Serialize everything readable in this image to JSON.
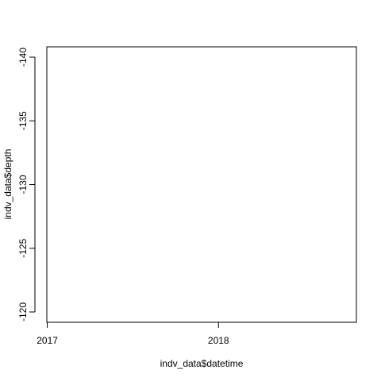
{
  "chart_data": {
    "type": "scatter",
    "title": "",
    "xlabel": "indv_data$datetime",
    "ylabel": "indv_data$depth",
    "x_axis": {
      "type": "date",
      "range": [
        "2016-12-31",
        "2018-10-22"
      ],
      "ticks": [
        {
          "value": "2017-01-01",
          "label": "2017"
        },
        {
          "value": "2018-01-01",
          "label": "2018"
        }
      ]
    },
    "y_axis": {
      "range": [
        -120,
        -140
      ],
      "reversed": true,
      "ticks": [
        {
          "value": -140,
          "label": "-140"
        },
        {
          "value": -135,
          "label": "-135"
        },
        {
          "value": -130,
          "label": "-130"
        },
        {
          "value": -125,
          "label": "-125"
        },
        {
          "value": -120,
          "label": "-120"
        }
      ]
    },
    "series": [
      {
        "x": [],
        "y": []
      }
    ],
    "grid": false,
    "legend": "none"
  }
}
